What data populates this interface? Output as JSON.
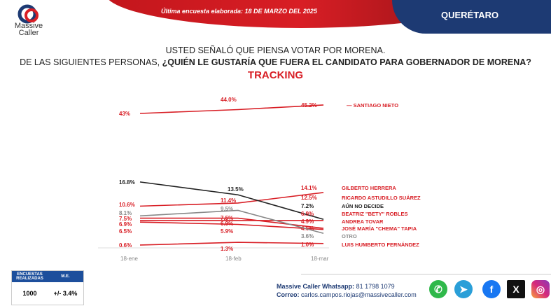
{
  "header": {
    "brand": "Massive Caller",
    "updated": "Última encuesta elaborada: 18 DE MARZO DEL 2025",
    "region": "QUERÉTARO"
  },
  "titles": {
    "line1": "USTED SEÑALÓ QUE PIENSA VOTAR POR MORENA.",
    "line2a": "DE LAS SIGUIENTES PERSONAS, ",
    "line2b": "¿QUIÉN LE GUSTARÍA QUE FUERA EL CANDIDATO PARA GOBERNADOR DE MORENA?",
    "line3": "TRACKING"
  },
  "chart_data": {
    "type": "line",
    "title": "TRACKING",
    "categories": [
      "18-ene",
      "18-feb",
      "18-mar"
    ],
    "series": [
      {
        "name": "SANTIAGO NIETO",
        "values": [
          43,
          44.0,
          45.2
        ],
        "color": "#d81e25"
      },
      {
        "name": "GILBERTO HERRERA",
        "values": [
          10.6,
          11.4,
          14.1
        ],
        "color": "#d81e25"
      },
      {
        "name": "RICARDO ASTUDILLO SUÁREZ",
        "values": [
          null,
          null,
          12.5
        ],
        "color": "#d81e25"
      },
      {
        "name": "AÚN NO DECIDE",
        "values": [
          16.8,
          13.5,
          7.2
        ],
        "color": "#222222"
      },
      {
        "name": "BEATRIZ \"BETY\" ROBLES",
        "values": [
          6.9,
          6.9,
          6.9
        ],
        "color": "#d81e25"
      },
      {
        "name": "ANDREA TOVAR",
        "values": [
          7.5,
          7.5,
          4.9
        ],
        "color": "#d81e25"
      },
      {
        "name": "JOSÉ MARÍA \"CHEMA\" TAPIA",
        "values": [
          6.5,
          5.9,
          4.6
        ],
        "color": "#d81e25"
      },
      {
        "name": "OTRO",
        "values": [
          8.1,
          9.5,
          3.6
        ],
        "color": "#888888"
      },
      {
        "name": "LUIS HUMBERTO FERNÁNDEZ",
        "values": [
          0.6,
          1.3,
          1.0
        ],
        "color": "#d81e25"
      }
    ],
    "labels": {
      "jan": [
        "43%",
        "16.8%",
        "10.6%",
        "8.1%",
        "7.5%",
        "6.9%",
        "6.5%",
        "0.6%"
      ],
      "feb": [
        "44.0%",
        "13.5%",
        "11.4%",
        "9.5%",
        "7.5%",
        "6.9%",
        "5.9%",
        "1.3%"
      ]
    }
  },
  "footer": {
    "col1": "ENCUESTAS REALIZADAS",
    "col2": "M.E.",
    "n": "1000",
    "me": "+/- 3.4%",
    "whatsapp_label": "Massive Caller Whatsapp:",
    "whatsapp": "81 1798 1079",
    "email_label": "Correo:",
    "email": "carlos.campos.riojas@massivecaller.com",
    "social": [
      "whatsapp-icon",
      "telegram-icon",
      "facebook-icon",
      "x-icon",
      "instagram-icon"
    ]
  }
}
